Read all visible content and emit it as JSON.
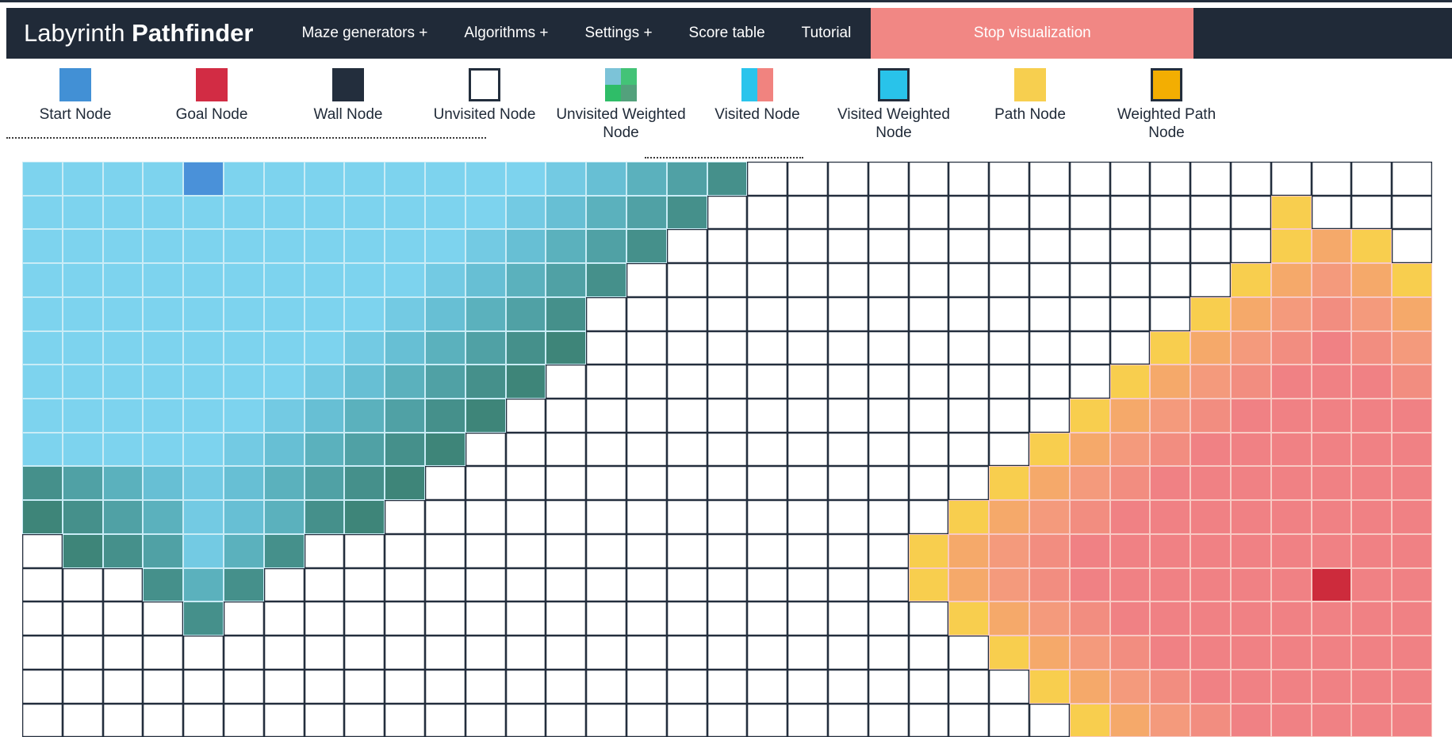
{
  "nav": {
    "title_regular": "Labyrinth ",
    "title_bold": "Pathfinder",
    "items": [
      "Maze generators +",
      "Algorithms +",
      "Settings +",
      "Score table",
      "Tutorial"
    ],
    "stop_button": "Stop visualization",
    "bar_color": "#202a38",
    "stop_button_color": "#f18784"
  },
  "legend": {
    "items": [
      {
        "label": "Start Node",
        "icon": "start-node-icon",
        "type": "solid",
        "colors": [
          "#4290d5"
        ]
      },
      {
        "label": "Goal Node",
        "icon": "goal-node-icon",
        "type": "solid",
        "colors": [
          "#d22c44"
        ]
      },
      {
        "label": "Wall Node",
        "icon": "wall-node-icon",
        "type": "solid",
        "colors": [
          "#232e3d"
        ]
      },
      {
        "label": "Unvisited Node",
        "icon": "unvisited-node-icon",
        "type": "bordered",
        "colors": [
          "#ffffff"
        ]
      },
      {
        "label": "Unvisited Weighted Node",
        "icon": "unvisited-weighted-node-icon",
        "type": "quad",
        "colors": [
          "#7cc3d8",
          "#43c377",
          "#2fbd68",
          "#53a17c"
        ]
      },
      {
        "label": "Visited Node",
        "icon": "visited-node-icon",
        "type": "split",
        "colors": [
          "#2ac4ec",
          "#f1837f"
        ]
      },
      {
        "label": "Visited Weighted Node",
        "icon": "visited-weighted-node-icon",
        "type": "bordered",
        "colors": [
          "#29c3ea"
        ]
      },
      {
        "label": "Path Node",
        "icon": "path-node-icon",
        "type": "solid",
        "colors": [
          "#f7cf4f"
        ]
      },
      {
        "label": "Weighted Path Node",
        "icon": "weighted-path-node-icon",
        "type": "bordered",
        "colors": [
          "#f3ae02"
        ]
      }
    ],
    "border_color": "#232e3d"
  },
  "grid": {
    "cols": 35,
    "rows": 17,
    "palette": {
      ".": "#ffffff",
      "S": "#4a91d9",
      "G": "#cd2b3c",
      "1": "#7dd3ee",
      "2": "#73cae3",
      "3": "#67bfd4",
      "4": "#5bb1bd",
      "5": "#50a1a5",
      "6": "#45908b",
      "7": "#3e8579",
      "Y": "#f8ce4e",
      "O": "#f5a96a",
      "P": "#f49a7c",
      "Q": "#f28d80",
      "R": "#f08184"
    },
    "border_colors": {
      "unvisited": "#232e3d",
      "visited_start_wave": "#c9ecf6",
      "visited_goal_wave": "#f8c9c3"
    },
    "wave_borders": {
      ".": "unvisited",
      "S": "visited_start_wave",
      "1": "visited_start_wave",
      "2": "visited_start_wave",
      "3": "visited_start_wave",
      "4": "visited_start_wave",
      "5": "visited_start_wave",
      "6": "visited_start_wave",
      "7": "visited_start_wave",
      "G": "visited_goal_wave",
      "Y": "visited_goal_wave",
      "O": "visited_goal_wave",
      "P": "visited_goal_wave",
      "Q": "visited_goal_wave",
      "R": "visited_goal_wave"
    },
    "cells": [
      "1111S1111111123456.................",
      "11111111111123456..............Y..",
      "1111111111123456...............YOY.",
      "111111111123456...............YOPOY",
      "11111111123456...............YOPQPO",
      "11111111234567..............YOPQRQP",
      "1111111234567..............YOPQRRRQ",
      "111111234567..............YOPQRRRRR",
      "11111234567..............YOPQRRRRRR",
      "6543234567..............YOPQRRRRRRR",
      "765423467..............YOPQRRRRRRRR",
      ".765246...............YOPQRRRRRRRRR",
      "...646................YOPQRRRRRRGRR",
      "....6..................YOPQRRRRRRRR",
      "........................YOPQRRRRRRR",
      ".........................YOPQRRRRRR",
      "..........................YOPQRRRRR"
    ],
    "start": {
      "col": 4,
      "row": 0
    },
    "goal": {
      "col": 32,
      "row": 12
    }
  }
}
